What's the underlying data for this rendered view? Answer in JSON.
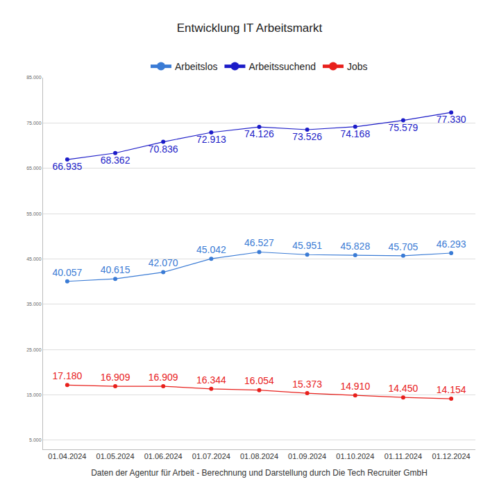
{
  "chart_data": {
    "type": "line",
    "title": "Entwicklung IT Arbeitsmarkt",
    "xlabel": "Daten der Agentur für Arbeit - Berechnung und Darstellung durch Die Tech Recruiter GmbH",
    "categories": [
      "01.04.2024",
      "01.05.2024",
      "01.06.2024",
      "01.07.2024",
      "01.08.2024",
      "01.09.2024",
      "01.10.2024",
      "01.11.2024",
      "01.12.2024"
    ],
    "series": [
      {
        "name": "Arbeitslos",
        "color": "#3a7bd5",
        "values": [
          40057,
          40615,
          42070,
          45042,
          46527,
          45951,
          45828,
          45705,
          46293
        ],
        "value_labels": [
          "40.057",
          "40.615",
          "42.070",
          "45.042",
          "46.527",
          "45.951",
          "45.828",
          "45.705",
          "46.293"
        ]
      },
      {
        "name": "Arbeitssuchend",
        "color": "#1c1cc8",
        "values": [
          66935,
          68362,
          70836,
          72913,
          74126,
          73526,
          74168,
          75579,
          77330
        ],
        "value_labels": [
          "66.935",
          "68.362",
          "70.836",
          "72.913",
          "74.126",
          "73.526",
          "74.168",
          "75.579",
          "77.330"
        ]
      },
      {
        "name": "Jobs",
        "color": "#e8201c",
        "values": [
          17180,
          16909,
          16909,
          16344,
          16054,
          15373,
          14910,
          14450,
          14154
        ],
        "value_labels": [
          "17.180",
          "16.909",
          "16.909",
          "16.344",
          "16.054",
          "15.373",
          "14.910",
          "14.450",
          "14.154"
        ]
      }
    ],
    "ylim": [
      3000,
      85000
    ],
    "yticks": [
      {
        "value": 5000,
        "label": "5.000"
      },
      {
        "value": 15000,
        "label": "15.000"
      },
      {
        "value": 25000,
        "label": "25.000"
      },
      {
        "value": 35000,
        "label": "35.000"
      },
      {
        "value": 45000,
        "label": "45.000"
      },
      {
        "value": 55000,
        "label": "55.000"
      },
      {
        "value": 65000,
        "label": "65.000"
      },
      {
        "value": 75000,
        "label": "75.000"
      },
      {
        "value": 85000,
        "label": "85.000"
      }
    ],
    "grid": true,
    "legend": "top",
    "data_labels": true,
    "marker": "circle",
    "line_style": "solid"
  }
}
